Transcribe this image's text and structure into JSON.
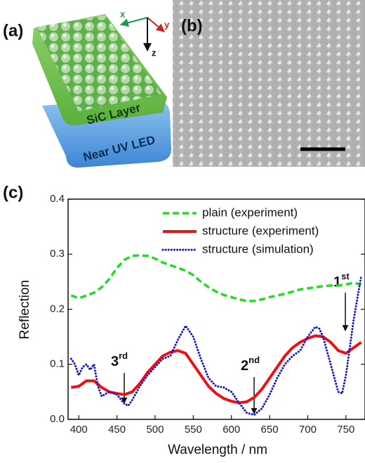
{
  "panel_labels": [
    "(a)",
    "(b)",
    "(c)"
  ],
  "diagram": {
    "axes": [
      "x",
      "y",
      "z"
    ],
    "layers": [
      "SiC Layer",
      "Near UV LED"
    ]
  },
  "chart_data": {
    "type": "line",
    "xlabel": "Wavelength / nm",
    "ylabel": "Reflection",
    "xlim": [
      386,
      775
    ],
    "xticks": [
      400,
      450,
      500,
      550,
      600,
      650,
      700,
      750
    ],
    "ylim": [
      0,
      0.4
    ],
    "yticks": [
      {
        "value": 0,
        "label": "0.0"
      },
      0.1,
      0.2,
      0.3,
      0.4
    ],
    "legend": "upper right",
    "series": [
      {
        "name": "plain (experiment)",
        "color": "#22dd22",
        "style": "dashed",
        "x": [
          390,
          400,
          410,
          420,
          430,
          440,
          450,
          460,
          470,
          480,
          490,
          500,
          510,
          520,
          530,
          540,
          550,
          560,
          570,
          580,
          590,
          600,
          610,
          620,
          630,
          640,
          650,
          660,
          670,
          680,
          690,
          700,
          710,
          720,
          730,
          740,
          750,
          760,
          770
        ],
        "values": [
          0.225,
          0.22,
          0.225,
          0.23,
          0.24,
          0.255,
          0.275,
          0.29,
          0.297,
          0.298,
          0.297,
          0.292,
          0.285,
          0.28,
          0.275,
          0.27,
          0.262,
          0.25,
          0.24,
          0.232,
          0.226,
          0.222,
          0.218,
          0.215,
          0.215,
          0.218,
          0.222,
          0.225,
          0.228,
          0.232,
          0.236,
          0.238,
          0.24,
          0.242,
          0.243,
          0.243,
          0.245,
          0.248,
          0.245
        ]
      },
      {
        "name": "structure (experiment)",
        "color": "#ee1111",
        "style": "solid",
        "x": [
          390,
          400,
          410,
          420,
          430,
          440,
          450,
          460,
          470,
          480,
          490,
          500,
          510,
          520,
          530,
          540,
          550,
          560,
          570,
          580,
          590,
          600,
          610,
          620,
          630,
          640,
          650,
          660,
          670,
          680,
          690,
          700,
          710,
          720,
          730,
          740,
          750,
          760,
          770
        ],
        "values": [
          0.058,
          0.06,
          0.07,
          0.07,
          0.058,
          0.05,
          0.047,
          0.045,
          0.05,
          0.065,
          0.085,
          0.1,
          0.115,
          0.122,
          0.125,
          0.12,
          0.1,
          0.08,
          0.06,
          0.047,
          0.038,
          0.033,
          0.03,
          0.032,
          0.04,
          0.055,
          0.075,
          0.095,
          0.115,
          0.13,
          0.14,
          0.147,
          0.152,
          0.15,
          0.14,
          0.125,
          0.12,
          0.13,
          0.14
        ]
      },
      {
        "name": "structure (simulation)",
        "color": "#1111dd",
        "style": "dotted",
        "x": [
          390,
          395,
          400,
          405,
          410,
          415,
          420,
          425,
          430,
          440,
          450,
          460,
          465,
          470,
          480,
          490,
          500,
          510,
          520,
          530,
          540,
          550,
          560,
          570,
          580,
          590,
          600,
          610,
          620,
          630,
          640,
          650,
          660,
          670,
          680,
          690,
          700,
          710,
          715,
          720,
          730,
          740,
          745,
          750,
          755,
          760,
          770
        ],
        "values": [
          0.11,
          0.1,
          0.08,
          0.095,
          0.1,
          0.09,
          0.1,
          0.06,
          0.042,
          0.05,
          0.045,
          0.028,
          0.025,
          0.035,
          0.06,
          0.08,
          0.095,
          0.11,
          0.115,
          0.145,
          0.17,
          0.15,
          0.11,
          0.075,
          0.06,
          0.058,
          0.05,
          0.03,
          0.012,
          0.008,
          0.02,
          0.045,
          0.075,
          0.1,
          0.115,
          0.125,
          0.15,
          0.168,
          0.165,
          0.15,
          0.1,
          0.05,
          0.047,
          0.08,
          0.13,
          0.18,
          0.26
        ]
      }
    ],
    "annotations": [
      {
        "text": "3",
        "sup": "rd"
      },
      {
        "text": "2",
        "sup": "nd"
      },
      {
        "text": "1",
        "sup": "st"
      }
    ]
  }
}
